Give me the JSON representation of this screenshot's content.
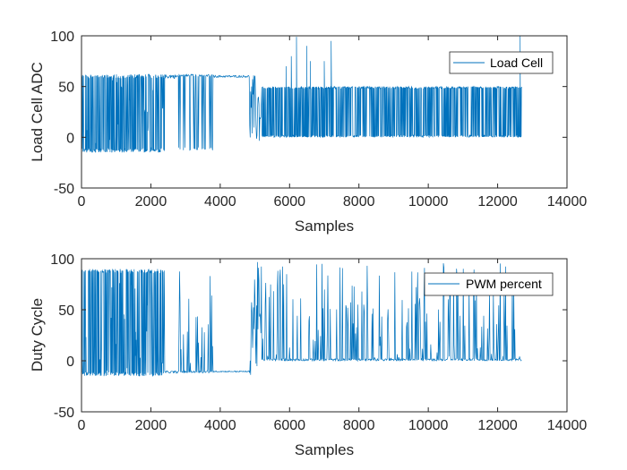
{
  "colors": {
    "series": "#0072BD",
    "axis": "#262626",
    "background": "#ffffff"
  },
  "chart_data": [
    {
      "type": "line",
      "xlabel": "Samples",
      "ylabel": "Load Cell ADC",
      "xlim": [
        0,
        14000
      ],
      "ylim": [
        -50,
        100
      ],
      "xticks": [
        0,
        2000,
        4000,
        6000,
        8000,
        10000,
        12000,
        14000
      ],
      "yticks": [
        -50,
        0,
        50,
        100
      ],
      "legend": {
        "placement": "top-right",
        "entries": [
          "Load Cell"
        ]
      },
      "grid": false,
      "series": [
        {
          "name": "Load Cell",
          "segments": [
            {
              "x_start": 0,
              "x_end": 2400,
              "low": -15,
              "high": 62,
              "style": "dense-oscillation"
            },
            {
              "x_start": 2400,
              "x_end": 2800,
              "low": 58,
              "high": 62,
              "style": "flat-high"
            },
            {
              "x_start": 2800,
              "x_end": 3800,
              "low": -13,
              "high": 62,
              "style": "sparse-spikes"
            },
            {
              "x_start": 3800,
              "x_end": 4850,
              "low": 59,
              "high": 61,
              "style": "flat-high"
            },
            {
              "x_start": 4850,
              "x_end": 5200,
              "low": -10,
              "high": 62,
              "style": "transition"
            },
            {
              "x_start": 5200,
              "x_end": 12700,
              "low": 0,
              "high": 50,
              "style": "dense-band"
            }
          ],
          "peaks": [
            {
              "x": 5900,
              "y": 70
            },
            {
              "x": 6050,
              "y": 80
            },
            {
              "x": 6200,
              "y": 99
            },
            {
              "x": 6500,
              "y": 90
            },
            {
              "x": 6600,
              "y": 75
            },
            {
              "x": 7000,
              "y": 75
            },
            {
              "x": 7200,
              "y": 95
            },
            {
              "x": 12650,
              "y": 100
            }
          ]
        }
      ]
    },
    {
      "type": "line",
      "xlabel": "Samples",
      "ylabel": "Duty Cycle",
      "xlim": [
        0,
        14000
      ],
      "ylim": [
        -50,
        100
      ],
      "xticks": [
        0,
        2000,
        4000,
        6000,
        8000,
        10000,
        12000,
        14000
      ],
      "yticks": [
        -50,
        0,
        50,
        100
      ],
      "legend": {
        "placement": "top-right",
        "entries": [
          "PWM percent"
        ]
      },
      "grid": false,
      "series": [
        {
          "name": "PWM percent",
          "segments": [
            {
              "x_start": 0,
              "x_end": 2400,
              "low": -15,
              "high": 90,
              "style": "dense-oscillation"
            },
            {
              "x_start": 2400,
              "x_end": 2800,
              "low": -12,
              "high": -10,
              "style": "flat-low"
            },
            {
              "x_start": 2800,
              "x_end": 3800,
              "low": -12,
              "high": 90,
              "style": "sparse-spikes"
            },
            {
              "x_start": 3800,
              "x_end": 4850,
              "low": -11,
              "high": -10,
              "style": "flat-low"
            },
            {
              "x_start": 4850,
              "x_end": 5200,
              "low": -15,
              "high": 97,
              "style": "transition"
            },
            {
              "x_start": 5200,
              "x_end": 12700,
              "low": 0,
              "high": 97,
              "style": "sparse-spikes"
            }
          ]
        }
      ]
    }
  ]
}
